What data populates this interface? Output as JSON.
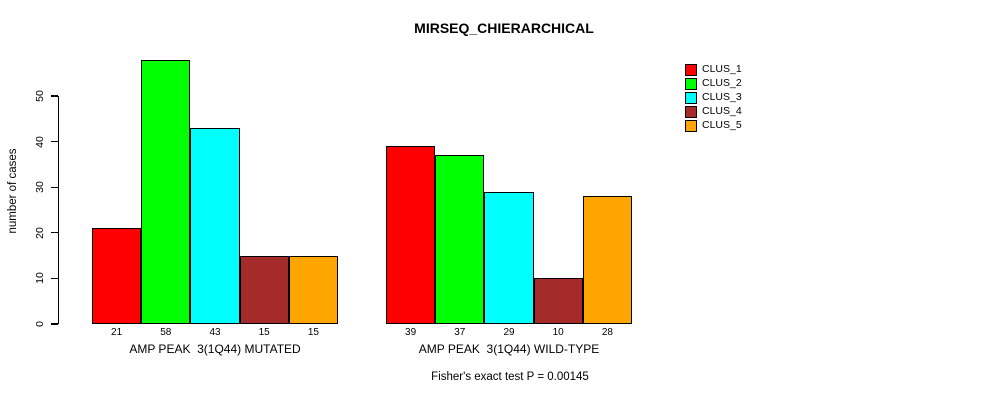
{
  "chart_data": {
    "type": "bar",
    "title": "MIRSEQ_CHIERARCHICAL",
    "subtitle": "Fisher's exact test P = 0.00145",
    "ylabel": "number of cases",
    "xlabel": "",
    "yticks": [
      0,
      10,
      20,
      30,
      40,
      50
    ],
    "ylim": [
      0,
      58
    ],
    "grid": false,
    "bar_value_labels_shown": true,
    "categories": [
      "AMP PEAK  3(1Q44) MUTATED",
      "AMP PEAK  3(1Q44) WILD-TYPE"
    ],
    "series": [
      {
        "name": "CLUS_1",
        "color": "#FF0000",
        "values": [
          21,
          39
        ]
      },
      {
        "name": "CLUS_2",
        "color": "#00FF00",
        "values": [
          58,
          37
        ]
      },
      {
        "name": "CLUS_3",
        "color": "#00FFFF",
        "values": [
          43,
          29
        ]
      },
      {
        "name": "CLUS_4",
        "color": "#A52A2A",
        "values": [
          15,
          10
        ]
      },
      {
        "name": "CLUS_5",
        "color": "#FFA500",
        "values": [
          15,
          28
        ]
      }
    ],
    "legend": {
      "position": "topright",
      "entries": [
        "CLUS_1",
        "CLUS_2",
        "CLUS_3",
        "CLUS_4",
        "CLUS_5"
      ]
    }
  }
}
